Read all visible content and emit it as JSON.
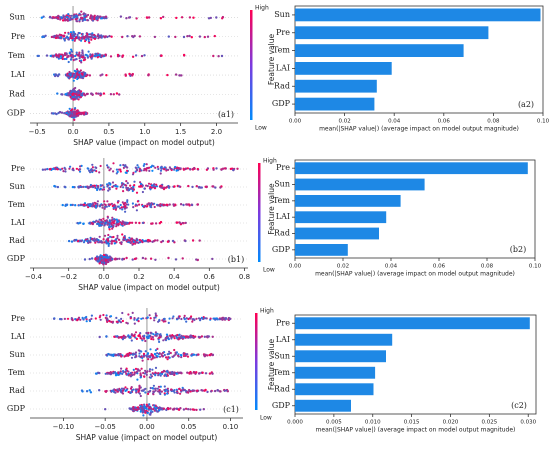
{
  "colors": {
    "high": "#ff0052",
    "low": "#008bfb",
    "bar": "#1e88e5",
    "axis": "#333333",
    "zero": "#999999"
  },
  "colorbar": {
    "high_label": "High",
    "low_label": "Low"
  },
  "chart_data": [
    {
      "panel_label": "(a1)",
      "type": "scatter",
      "subtype": "shap-beeswarm",
      "title": "",
      "xlabel": "SHAP value (impact on model output)",
      "ylabel": "",
      "features": [
        "Sun",
        "Pre",
        "Tem",
        "LAI",
        "Rad",
        "GDP"
      ],
      "xlim": [
        -0.6,
        2.3
      ],
      "xticks": [
        -0.5,
        0.0,
        0.5,
        1.0,
        1.5,
        2.0
      ],
      "xtick_labels": [
        "−0.5",
        "0.0",
        "0.5",
        "1.0",
        "1.5",
        "2.0"
      ],
      "range": [
        [
          -0.5,
          2.1
        ],
        [
          -0.5,
          2.0
        ],
        [
          -0.5,
          2.1
        ],
        [
          -0.3,
          1.6
        ],
        [
          -0.3,
          0.65
        ],
        [
          -0.3,
          0.2
        ]
      ],
      "dense": [
        [
          -0.3,
          0.45
        ],
        [
          -0.3,
          0.45
        ],
        [
          -0.3,
          0.45
        ],
        [
          -0.1,
          0.2
        ],
        [
          -0.08,
          0.15
        ],
        [
          -0.1,
          0.1
        ]
      ],
      "colorbar_labels": [
        "High",
        "Low"
      ]
    },
    {
      "panel_label": "(a2)",
      "type": "bar",
      "orientation": "horizontal",
      "title": "",
      "xlabel": "mean(|SHAP value|) (average impact on model output magnitude)",
      "ylabel": "Feature value",
      "categories": [
        "Sun",
        "Pre",
        "Tem",
        "LAI",
        "Rad",
        "GDP"
      ],
      "values": [
        0.099,
        0.078,
        0.068,
        0.039,
        0.033,
        0.032
      ],
      "xlim": [
        0,
        0.1
      ],
      "xticks": [
        0.0,
        0.02,
        0.04,
        0.06,
        0.08,
        0.1
      ],
      "xtick_labels": [
        "0.00",
        "0.02",
        "0.04",
        "0.06",
        "0.08",
        "0.10"
      ]
    },
    {
      "panel_label": "(b1)",
      "type": "scatter",
      "subtype": "shap-beeswarm",
      "title": "",
      "xlabel": "SHAP value (impact on model output)",
      "ylabel": "",
      "features": [
        "Pre",
        "Sun",
        "Tem",
        "LAI",
        "Rad",
        "GDP"
      ],
      "xlim": [
        -0.42,
        0.82
      ],
      "xticks": [
        -0.4,
        -0.2,
        0.0,
        0.2,
        0.4,
        0.6,
        0.8
      ],
      "xtick_labels": [
        "−0.4",
        "−0.2",
        "0.0",
        "0.2",
        "0.4",
        "0.6",
        "0.8"
      ],
      "range": [
        [
          -0.35,
          0.78
        ],
        [
          -0.3,
          0.7
        ],
        [
          -0.25,
          0.6
        ],
        [
          -0.15,
          0.5
        ],
        [
          -0.25,
          0.55
        ],
        [
          -0.15,
          0.62
        ]
      ],
      "dense": [
        [
          -0.32,
          0.5
        ],
        [
          -0.15,
          0.4
        ],
        [
          -0.15,
          0.35
        ],
        [
          -0.08,
          0.15
        ],
        [
          -0.15,
          0.25
        ],
        [
          -0.05,
          0.05
        ]
      ],
      "colorbar_labels": [
        "High",
        "Low"
      ]
    },
    {
      "panel_label": "(b2)",
      "type": "bar",
      "orientation": "horizontal",
      "title": "",
      "xlabel": "mean(|SHAP value|) (average impact on model output magnitude)",
      "ylabel": "Feature value",
      "categories": [
        "Pre",
        "Sun",
        "Tem",
        "LAI",
        "Rad",
        "GDP"
      ],
      "values": [
        0.097,
        0.054,
        0.044,
        0.038,
        0.035,
        0.022
      ],
      "xlim": [
        0,
        0.1
      ],
      "xticks": [
        0.0,
        0.02,
        0.04,
        0.06,
        0.08,
        0.1
      ],
      "xtick_labels": [
        "0.00",
        "0.02",
        "0.04",
        "0.06",
        "0.08",
        "0.10"
      ]
    },
    {
      "panel_label": "(c1)",
      "type": "scatter",
      "subtype": "shap-beeswarm",
      "title": "",
      "xlabel": "SHAP value (impact on model output)",
      "ylabel": "",
      "features": [
        "Pre",
        "LAI",
        "Sun",
        "Tem",
        "Rad",
        "GDP"
      ],
      "xlim": [
        -0.14,
        0.115
      ],
      "xticks": [
        -0.1,
        -0.05,
        0.0,
        0.05,
        0.1
      ],
      "xtick_labels": [
        "−0.10",
        "−0.05",
        "0.00",
        "0.05",
        "0.10"
      ],
      "range": [
        [
          -0.13,
          0.1
        ],
        [
          -0.06,
          0.08
        ],
        [
          -0.05,
          0.08
        ],
        [
          -0.08,
          0.08
        ],
        [
          -0.08,
          0.1
        ],
        [
          -0.05,
          0.07
        ]
      ],
      "dense": [
        [
          -0.1,
          0.09
        ],
        [
          -0.04,
          0.05
        ],
        [
          -0.04,
          0.06
        ],
        [
          -0.05,
          0.04
        ],
        [
          -0.05,
          0.06
        ],
        [
          -0.02,
          0.02
        ]
      ],
      "colorbar_labels": [
        "High",
        "Low"
      ]
    },
    {
      "panel_label": "(c2)",
      "type": "bar",
      "orientation": "horizontal",
      "title": "",
      "xlabel": "mean(|SHAP value|) (average impact on model output magnitude)",
      "ylabel": "Feature value",
      "categories": [
        "Pre",
        "LAI",
        "Sun",
        "Tem",
        "Rad",
        "GDP"
      ],
      "values": [
        0.0302,
        0.0125,
        0.0117,
        0.0103,
        0.0101,
        0.0072
      ],
      "xlim": [
        0,
        0.031
      ],
      "xticks": [
        0.0,
        0.005,
        0.01,
        0.015,
        0.02,
        0.025,
        0.03
      ],
      "xtick_labels": [
        "0.000",
        "0.005",
        "0.010",
        "0.015",
        "0.020",
        "0.025",
        "0.030"
      ]
    }
  ]
}
